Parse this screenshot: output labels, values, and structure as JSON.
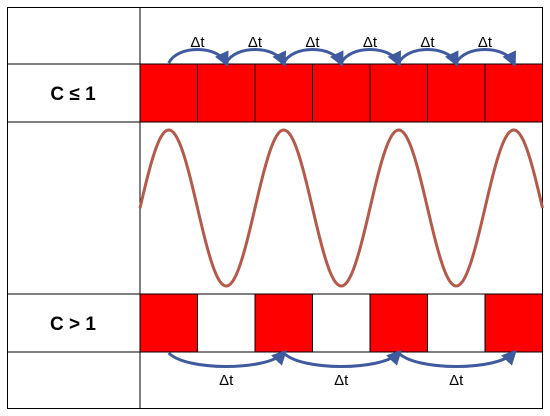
{
  "rows": {
    "stable": {
      "label": "C ≤ 1",
      "cells": [
        1,
        1,
        1,
        1,
        1,
        1,
        1
      ]
    },
    "unstable": {
      "label": "C > 1",
      "cells": [
        1,
        0,
        1,
        0,
        1,
        0,
        1
      ]
    }
  },
  "time_step_label": "Δt",
  "top_arrows": {
    "count": 6,
    "span_cells": 1
  },
  "bottom_arrows": {
    "count": 3,
    "span_cells": 2
  },
  "wave": {
    "cycles": 3.5
  },
  "colors": {
    "cell_fill": "#ff0000",
    "empty_cell": "#ffffff",
    "grid_line": "#000000",
    "wave": "#b5594a",
    "arrow": "#3f5a9e"
  }
}
